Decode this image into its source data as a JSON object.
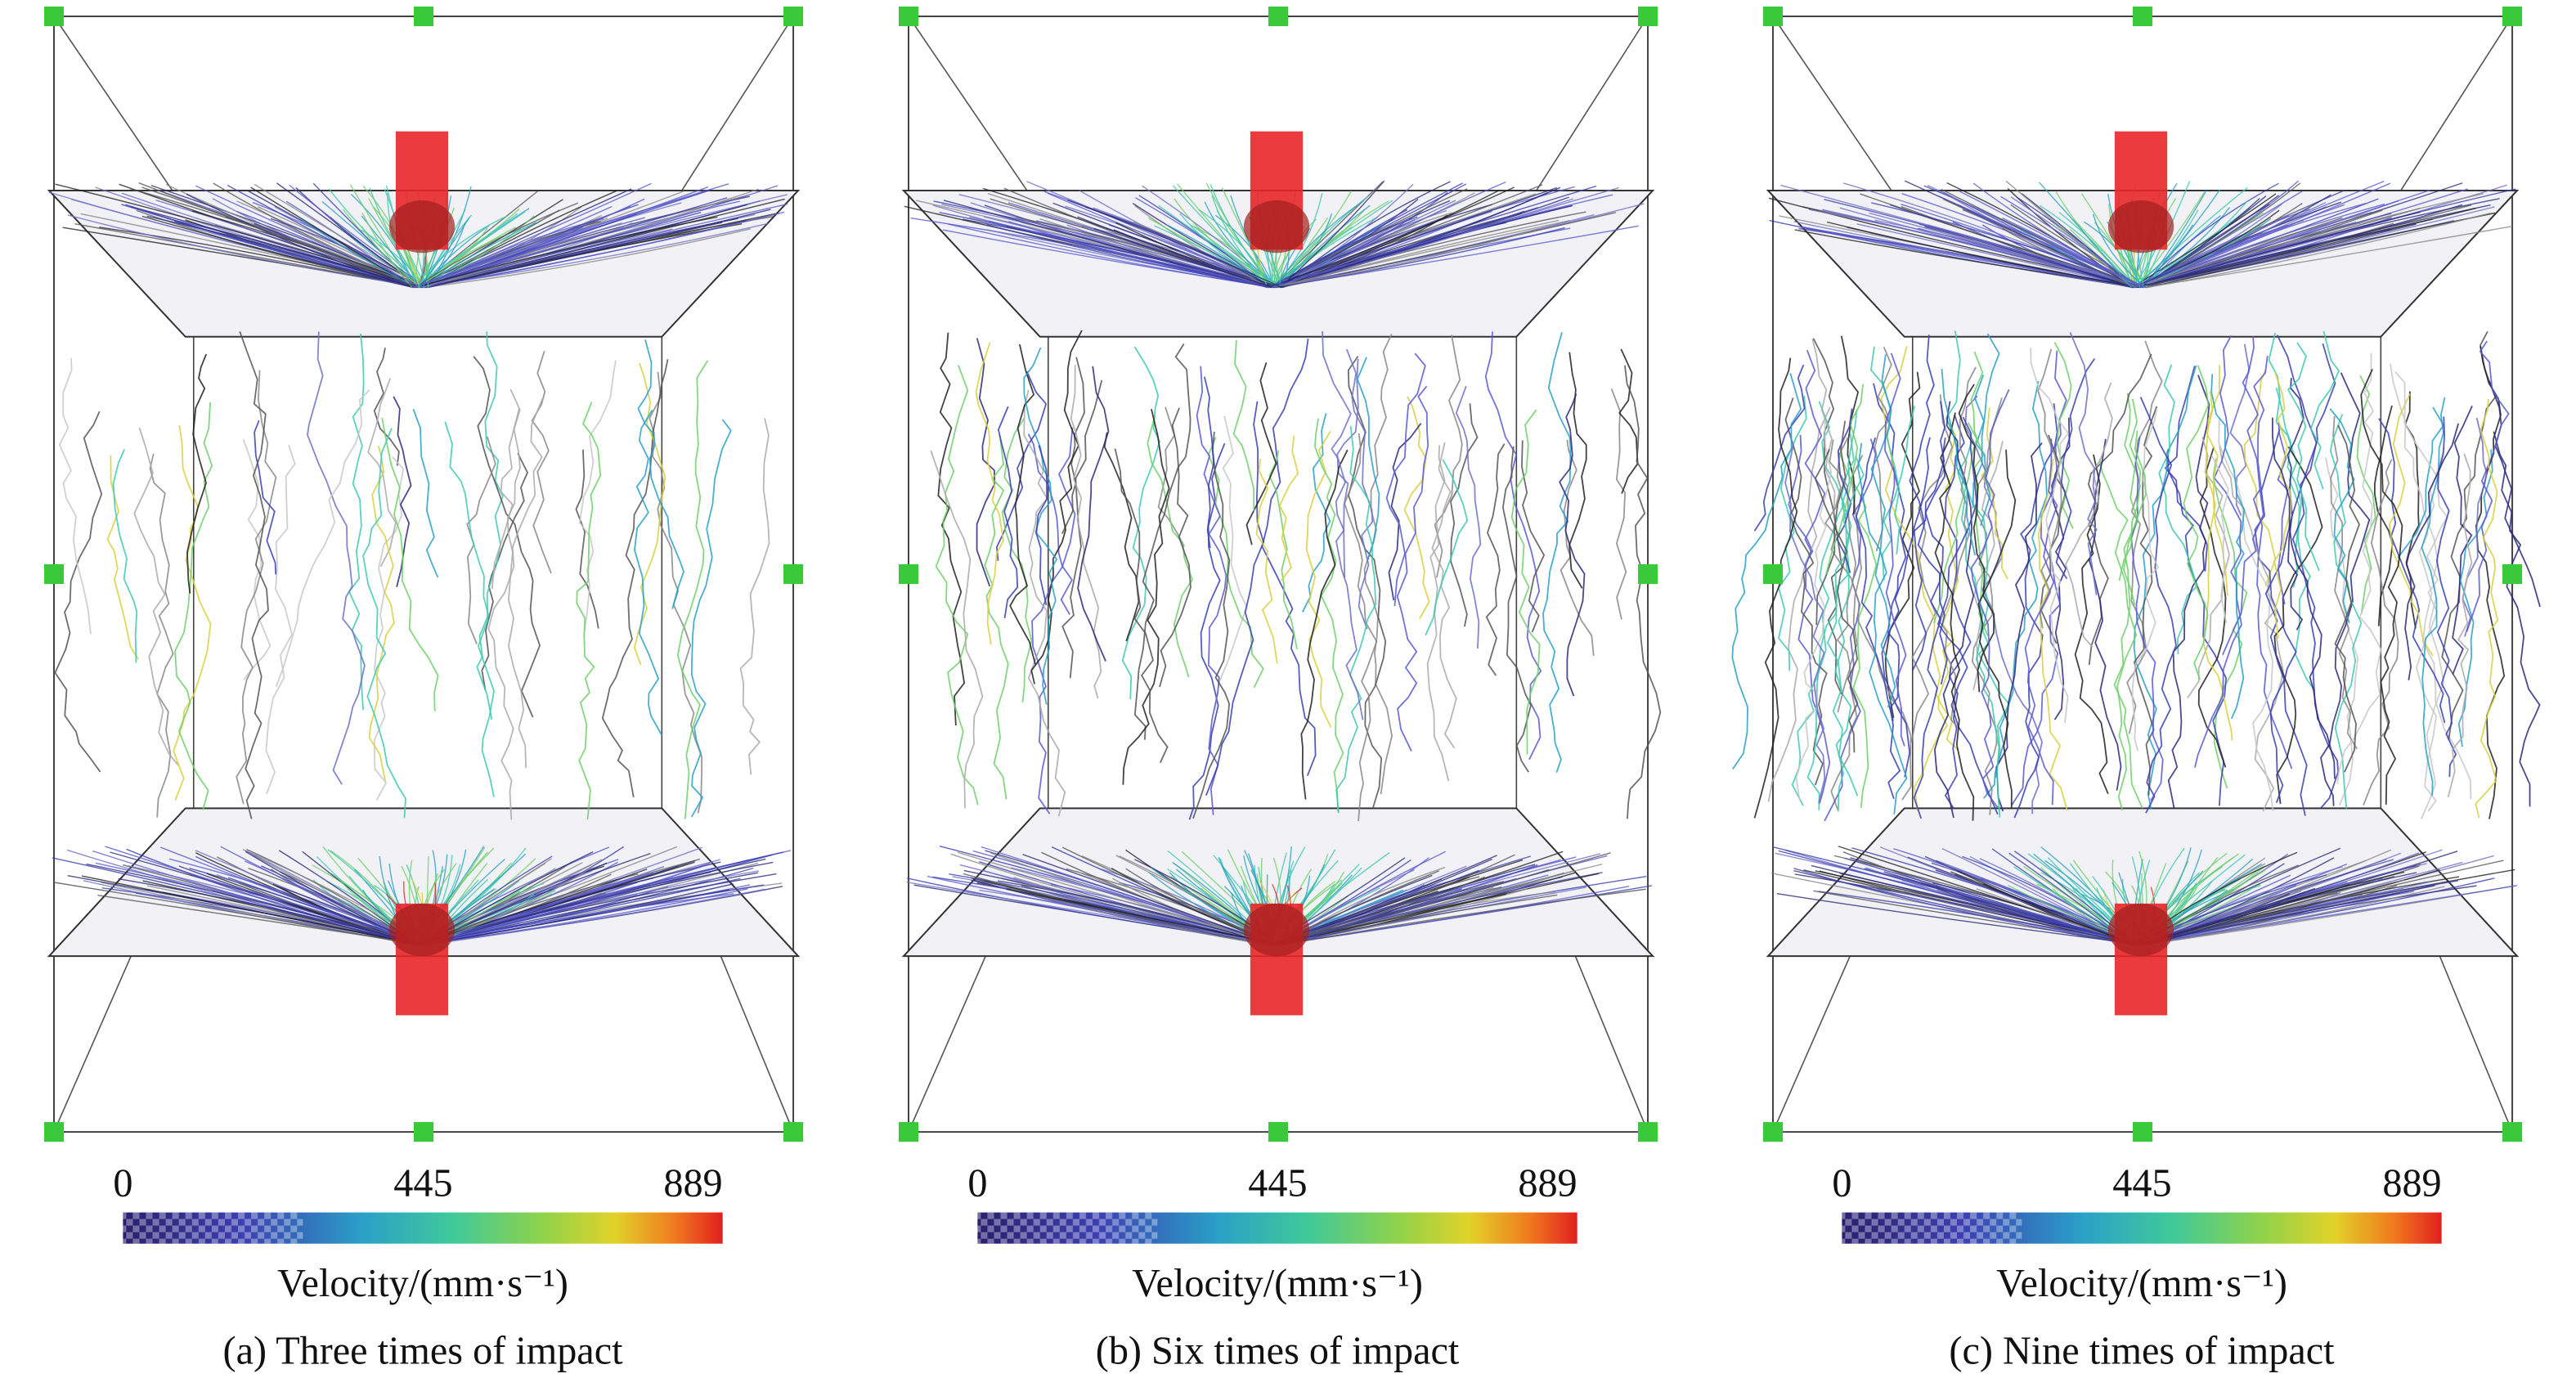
{
  "panels": [
    {
      "colorbar": {
        "ticks": [
          0,
          445,
          889
        ],
        "label": "Velocity/(mm·s⁻¹)"
      },
      "caption": "(a) Three times of impact"
    },
    {
      "colorbar": {
        "ticks": [
          0,
          445,
          889
        ],
        "label": "Velocity/(mm·s⁻¹)"
      },
      "caption": "(b) Six times of impact"
    },
    {
      "colorbar": {
        "ticks": [
          0,
          445,
          889
        ],
        "label": "Velocity/(mm·s⁻¹)"
      },
      "caption": "(c) Nine times of impact"
    }
  ]
}
